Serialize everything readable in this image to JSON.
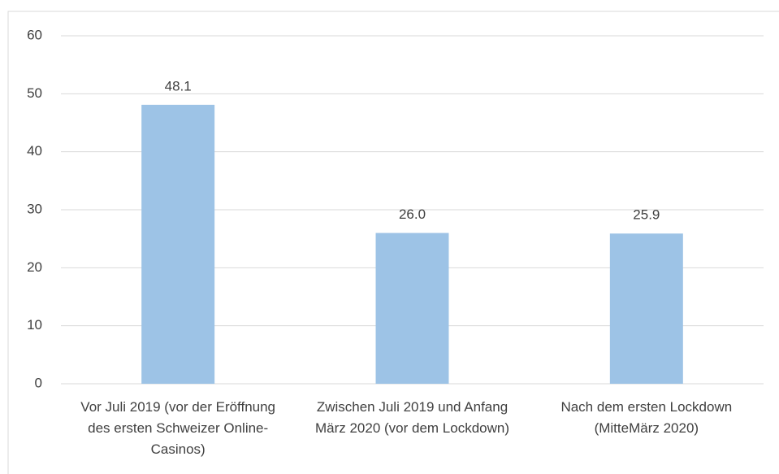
{
  "chart_data": {
    "type": "bar",
    "categories": [
      "Vor Juli 2019 (vor der Eröffnung des ersten Schweizer Online-Casinos)",
      "Zwischen Juli 2019 und Anfang März 2020 (vor dem Lockdown)",
      "Nach dem ersten Lockdown (MitteMärz 2020)"
    ],
    "values": [
      48.1,
      26,
      25.9
    ],
    "value_labels": [
      "48.1",
      "26.0",
      "25.9"
    ],
    "color": "#9dc3e6",
    "ylim": [
      0,
      60
    ],
    "yticks": [
      0,
      10,
      20,
      30,
      40,
      50,
      60
    ],
    "grid": true
  }
}
